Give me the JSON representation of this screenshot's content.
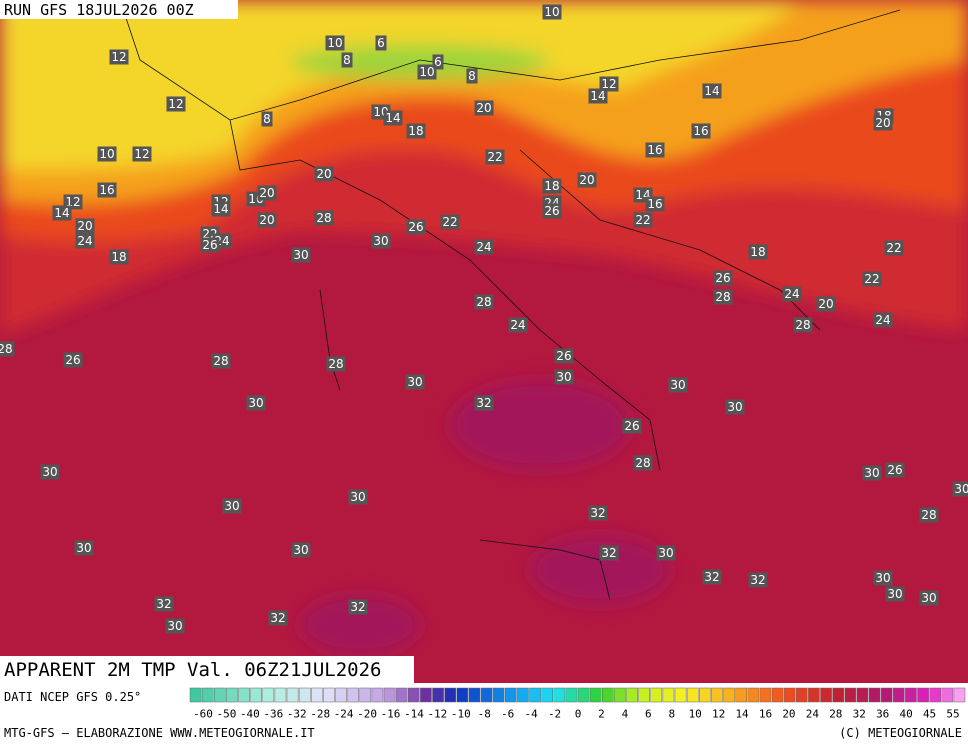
{
  "header": {
    "run": "RUN GFS 18JUL2026 00Z"
  },
  "map": {
    "labels": [
      10,
      10,
      6,
      8,
      6,
      10,
      8,
      12,
      12,
      14,
      14,
      12,
      8,
      10,
      14,
      18,
      20,
      16,
      18,
      20,
      10,
      12,
      16,
      22,
      20,
      18,
      20,
      16,
      12,
      14,
      12,
      14,
      16,
      20,
      14,
      16,
      24,
      26,
      20,
      24,
      20,
      28,
      26,
      22,
      22,
      22,
      24,
      26,
      30,
      24,
      18,
      30,
      18,
      22,
      26,
      28,
      22,
      24,
      20,
      28,
      24,
      28,
      24,
      28,
      26,
      28,
      28,
      26,
      30,
      30,
      30,
      30,
      32,
      30,
      26,
      28,
      30,
      30,
      26,
      30,
      30,
      30,
      32,
      28,
      30,
      30,
      32,
      30,
      32,
      32,
      30,
      30,
      30,
      32,
      32,
      30,
      32
    ]
  },
  "footer": {
    "title": "APPARENT 2M TMP Val. 06Z21JUL2026",
    "source": "DATI NCEP GFS 0.25°",
    "credit": "MTG-GFS — ELABORAZIONE WWW.METEOGIORNALE.IT",
    "copyright": "(C) METEOGIORNALE"
  },
  "scale": {
    "ticks": [
      -60,
      -50,
      -40,
      -36,
      -32,
      -28,
      -24,
      -20,
      -16,
      -14,
      -12,
      -10,
      -8,
      -6,
      -4,
      -2,
      0,
      2,
      4,
      6,
      8,
      10,
      12,
      14,
      16,
      20,
      24,
      28,
      32,
      36,
      40,
      45,
      55
    ]
  }
}
